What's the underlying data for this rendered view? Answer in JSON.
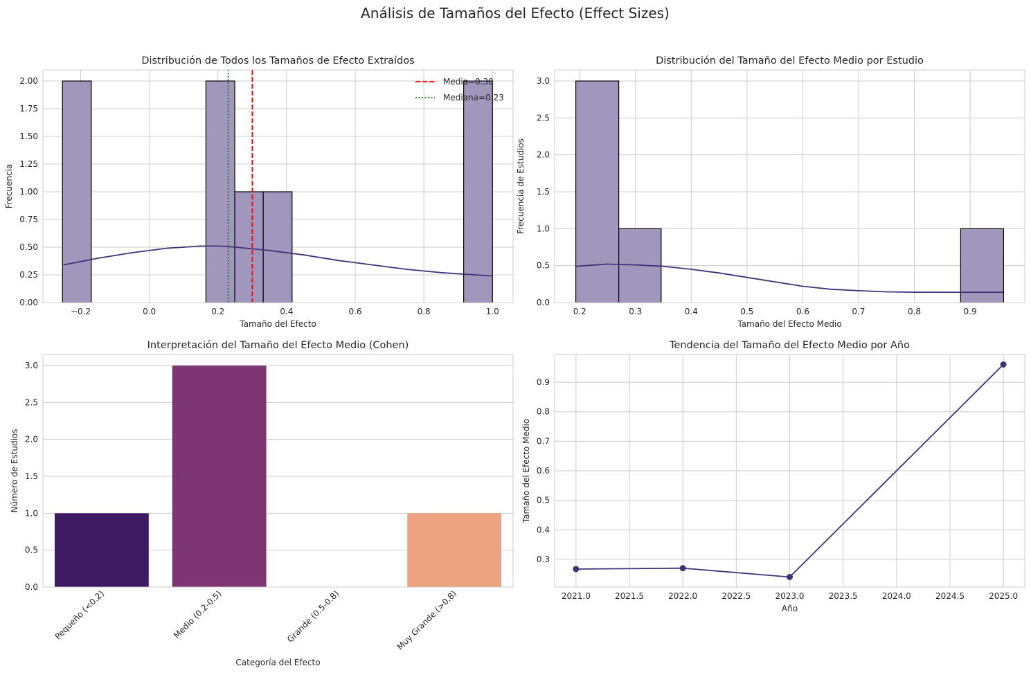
{
  "suptitle": "Análisis de Tamaños del Efecto (Effect Sizes)",
  "colors": {
    "hist_fill": "#a197bc",
    "kde_line": "#3f327a",
    "mean_line": "#ff0000",
    "median_line": "#008000",
    "bar_small": "#3e1a63",
    "bar_medium": "#7e3574",
    "bar_very_large": "#eda37f"
  },
  "chart_data": [
    {
      "id": "p1",
      "type": "histogram",
      "title": "Distribución de Todos los Tamaños de Efecto Extraídos",
      "xlabel": "Tamaño del Efecto",
      "ylabel": "Frecuencia",
      "xlim": [
        -0.31,
        1.06
      ],
      "ylim": [
        0,
        2.1
      ],
      "xticks": [
        -0.2,
        0.0,
        0.2,
        0.4,
        0.6,
        0.8,
        1.0
      ],
      "xtick_labels": [
        "−0.2",
        "0.0",
        "0.2",
        "0.4",
        "0.6",
        "0.8",
        "1.0"
      ],
      "yticks": [
        0,
        0.25,
        0.5,
        0.75,
        1.0,
        1.25,
        1.5,
        1.75,
        2.0
      ],
      "ytick_labels": [
        "0.00",
        "0.25",
        "0.50",
        "0.75",
        "1.00",
        "1.25",
        "1.50",
        "1.75",
        "2.00"
      ],
      "grid": true,
      "bins": [
        {
          "x0": -0.253,
          "x1": -0.169,
          "count": 2
        },
        {
          "x0": 0.165,
          "x1": 0.249,
          "count": 2
        },
        {
          "x0": 0.249,
          "x1": 0.332,
          "count": 1
        },
        {
          "x0": 0.332,
          "x1": 0.416,
          "count": 1
        },
        {
          "x0": 0.916,
          "x1": 1.0,
          "count": 2
        }
      ],
      "kde": {
        "x": [
          -0.25,
          -0.15,
          -0.05,
          0.05,
          0.15,
          0.2,
          0.25,
          0.35,
          0.45,
          0.55,
          0.65,
          0.75,
          0.85,
          0.95,
          1.0
        ],
        "y": [
          0.34,
          0.4,
          0.45,
          0.49,
          0.51,
          0.51,
          0.5,
          0.47,
          0.43,
          0.38,
          0.34,
          0.3,
          0.27,
          0.25,
          0.24
        ]
      },
      "vlines": [
        {
          "x": 0.3,
          "label": "Media=0.30",
          "style": "dashed",
          "color": "#ff0000"
        },
        {
          "x": 0.23,
          "label": "Mediana=0.23",
          "style": "dotted",
          "color": "#008000"
        }
      ],
      "legend": "top-right"
    },
    {
      "id": "p2",
      "type": "histogram",
      "title": "Distribución del Tamaño del Efecto Medio por Estudio",
      "xlabel": "Tamaño del Efecto Medio",
      "ylabel": "Frecuencia de Estudios",
      "xlim": [
        0.155,
        0.998
      ],
      "ylim": [
        0,
        3.15
      ],
      "xticks": [
        0.2,
        0.3,
        0.4,
        0.5,
        0.6,
        0.7,
        0.8,
        0.9
      ],
      "xtick_labels": [
        "0.2",
        "0.3",
        "0.4",
        "0.5",
        "0.6",
        "0.7",
        "0.8",
        "0.9"
      ],
      "yticks": [
        0,
        0.5,
        1.0,
        1.5,
        2.0,
        2.5,
        3.0
      ],
      "ytick_labels": [
        "0.0",
        "0.5",
        "1.0",
        "1.5",
        "2.0",
        "2.5",
        "3.0"
      ],
      "grid": true,
      "bins": [
        {
          "x0": 0.193,
          "x1": 0.27,
          "count": 3
        },
        {
          "x0": 0.27,
          "x1": 0.346,
          "count": 1
        },
        {
          "x0": 0.883,
          "x1": 0.96,
          "count": 1
        }
      ],
      "kde": {
        "x": [
          0.193,
          0.25,
          0.3,
          0.35,
          0.4,
          0.45,
          0.5,
          0.55,
          0.6,
          0.65,
          0.7,
          0.75,
          0.8,
          0.85,
          0.9,
          0.96
        ],
        "y": [
          0.49,
          0.52,
          0.51,
          0.49,
          0.45,
          0.4,
          0.34,
          0.28,
          0.22,
          0.18,
          0.16,
          0.145,
          0.14,
          0.14,
          0.14,
          0.14
        ]
      }
    },
    {
      "id": "p3",
      "type": "bar",
      "title": "Interpretación del Tamaño del Efecto Medio (Cohen)",
      "xlabel": "Categoría del Efecto",
      "ylabel": "Número de Estudios",
      "categories": [
        "Pequeño (<0.2)",
        "Medio (0.2-0.5)",
        "Grande (0.5-0.8)",
        "Muy Grande (>0.8)"
      ],
      "values": [
        1,
        3,
        0,
        1
      ],
      "bar_colors": [
        "#3e1a63",
        "#7e3574",
        "#b84c6b",
        "#eda37f"
      ],
      "ylim": [
        0,
        3.15
      ],
      "yticks": [
        0,
        0.5,
        1.0,
        1.5,
        2.0,
        2.5,
        3.0
      ],
      "ytick_labels": [
        "0.0",
        "0.5",
        "1.0",
        "1.5",
        "2.0",
        "2.5",
        "3.0"
      ],
      "grid": true
    },
    {
      "id": "p4",
      "type": "line",
      "title": "Tendencia del Tamaño del Efecto Medio por Año",
      "xlabel": "Año",
      "ylabel": "Tamaño del Efecto Medio",
      "x": [
        2021,
        2022,
        2023,
        2025
      ],
      "y": [
        0.267,
        0.27,
        0.24,
        0.96
      ],
      "xlim": [
        2020.8,
        2025.2
      ],
      "ylim": [
        0.206,
        0.994
      ],
      "xticks": [
        2021.0,
        2021.5,
        2022.0,
        2022.5,
        2023.0,
        2023.5,
        2024.0,
        2024.5,
        2025.0
      ],
      "xtick_labels": [
        "2021.0",
        "2021.5",
        "2022.0",
        "2022.5",
        "2023.0",
        "2023.5",
        "2024.0",
        "2024.5",
        "2025.0"
      ],
      "yticks": [
        0.3,
        0.4,
        0.5,
        0.6,
        0.7,
        0.8,
        0.9
      ],
      "ytick_labels": [
        "0.3",
        "0.4",
        "0.5",
        "0.6",
        "0.7",
        "0.8",
        "0.9"
      ],
      "grid": true
    }
  ]
}
